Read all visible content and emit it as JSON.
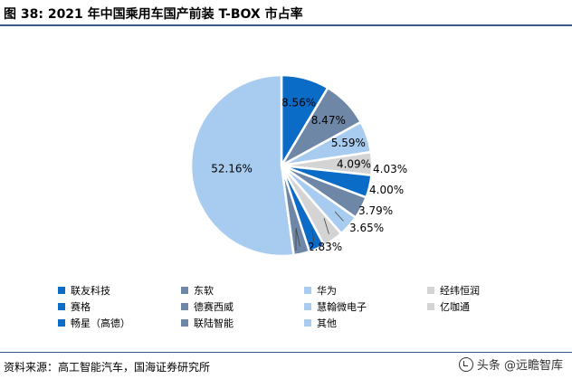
{
  "header": {
    "title": "图 38: 2021 年中国乘用车国产前装 T-BOX 市占率"
  },
  "chart_data": {
    "type": "pie",
    "title": "",
    "series": [
      {
        "name": "联友科技",
        "value": 8.56,
        "label": "8.56%",
        "color": "#0b6cc8"
      },
      {
        "name": "东软",
        "value": 8.47,
        "label": "8.47%",
        "color": "#6f87a6"
      },
      {
        "name": "华为",
        "value": 5.59,
        "label": "5.59%",
        "color": "#a8ccf0"
      },
      {
        "name": "经纬恒润",
        "value": 4.09,
        "label": "4.09%",
        "color": "#d4d4d4"
      },
      {
        "name": "赛格",
        "value": 4.03,
        "label": "4.03%",
        "color": "#0b6cc8"
      },
      {
        "name": "德赛西威",
        "value": 4.0,
        "label": "4.00%",
        "color": "#6f87a6"
      },
      {
        "name": "慧翰微电子",
        "value": 3.79,
        "label": "3.79%",
        "color": "#a8ccf0"
      },
      {
        "name": "亿咖通",
        "value": 3.65,
        "label": "3.65%",
        "color": "#d4d4d4"
      },
      {
        "name": "畅星（高德）",
        "value": 2.83,
        "label": "2.83%",
        "color": "#0b6cc8"
      },
      {
        "name": "联陆智能",
        "value": 2.83,
        "label": "2.83%",
        "color": "#6f87a6"
      },
      {
        "name": "其他",
        "value": 52.16,
        "label": "52.16%",
        "color": "#a8ccf0"
      }
    ],
    "legend_placement": "bottom"
  },
  "source": {
    "text": "资料来源：高工智能汽车，国海证券研究所"
  },
  "watermark": {
    "text": "头条 @远瞻智库"
  }
}
